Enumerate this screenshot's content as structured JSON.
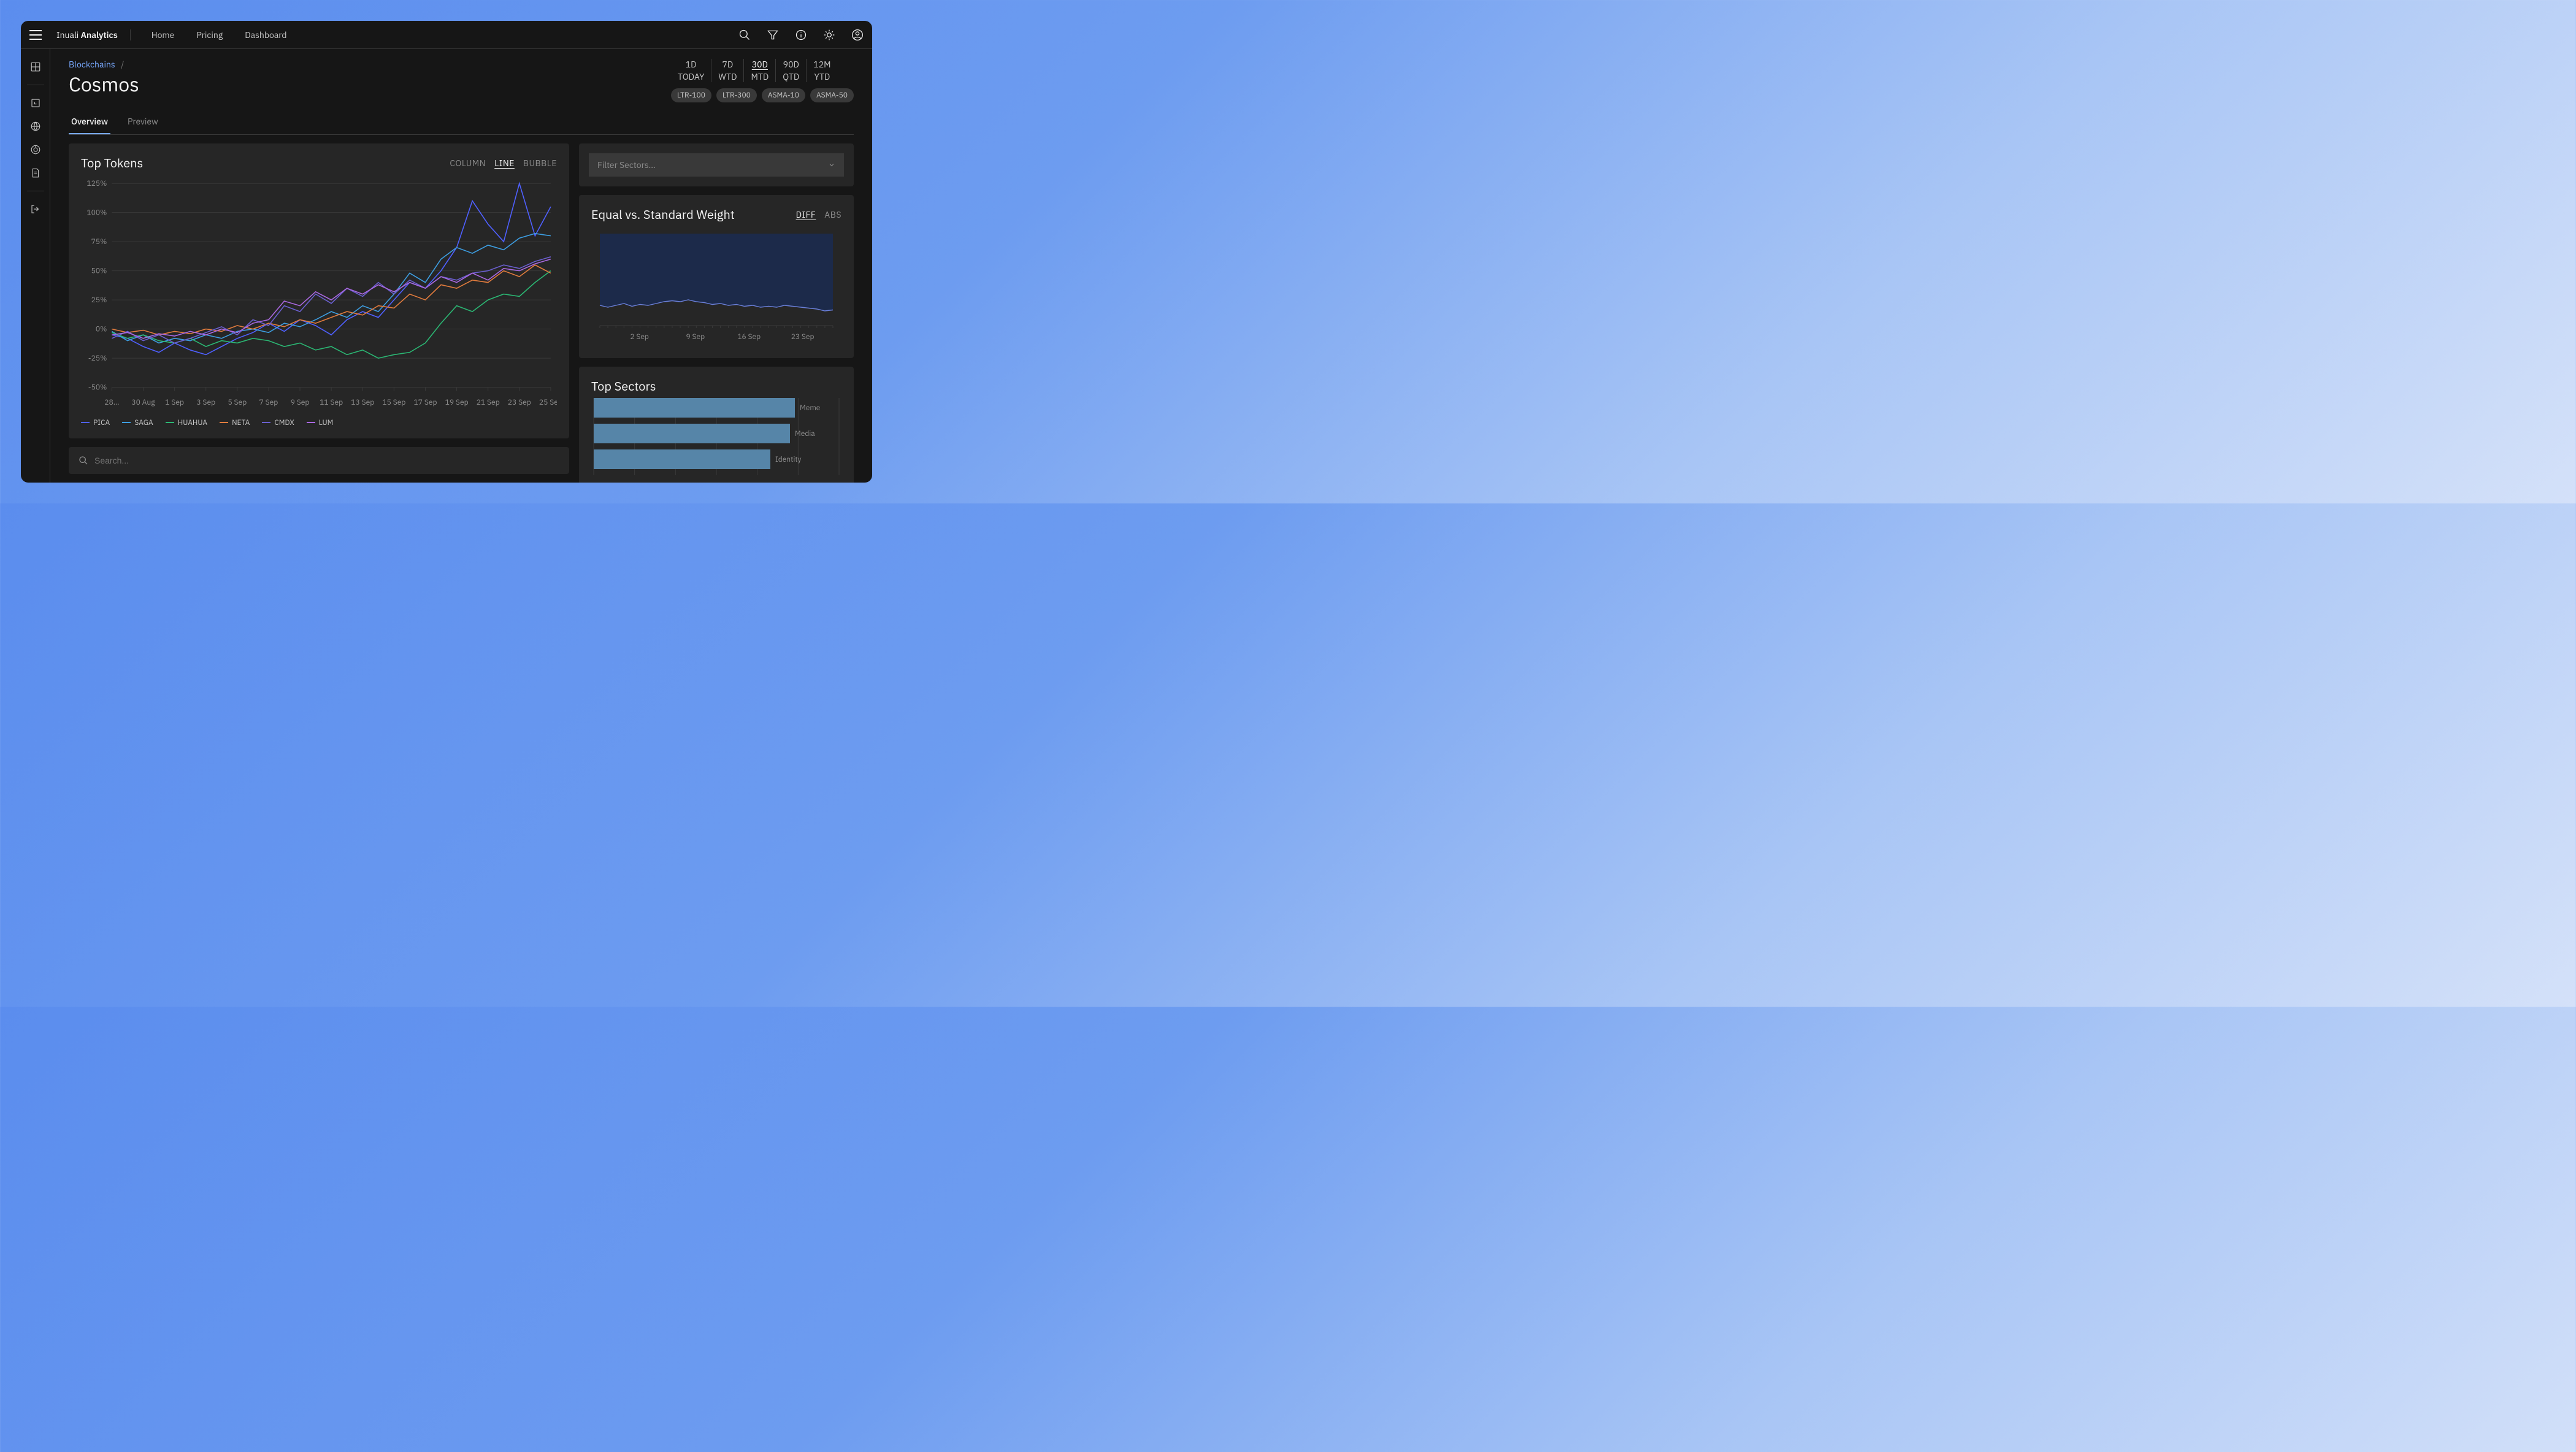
{
  "brand": {
    "prefix": "Inuali",
    "suffix": "Analytics"
  },
  "nav": [
    "Home",
    "Pricing",
    "Dashboard"
  ],
  "breadcrumb": {
    "link": "Blockchains",
    "sep": "/"
  },
  "page_title": "Cosmos",
  "time_ranges": [
    {
      "top": "1D",
      "bottom": "TODAY",
      "active": false
    },
    {
      "top": "7D",
      "bottom": "WTD",
      "active": false
    },
    {
      "top": "30D",
      "bottom": "MTD",
      "active": true
    },
    {
      "top": "90D",
      "bottom": "QTD",
      "active": false
    },
    {
      "top": "12M",
      "bottom": "YTD",
      "active": false
    }
  ],
  "chips": [
    "LTR-100",
    "LTR-300",
    "ASMA-10",
    "ASMA-50"
  ],
  "tabs": [
    {
      "label": "Overview",
      "active": true
    },
    {
      "label": "Preview",
      "active": false
    }
  ],
  "top_tokens": {
    "title": "Top Tokens",
    "chart_types": [
      {
        "label": "COLUMN",
        "active": false
      },
      {
        "label": "LINE",
        "active": true
      },
      {
        "label": "BUBBLE",
        "active": false
      }
    ],
    "y_ticks": [
      "125%",
      "100%",
      "75%",
      "50%",
      "25%",
      "0%",
      "-25%",
      "-50%"
    ],
    "y_values": [
      125,
      100,
      75,
      50,
      25,
      0,
      -25,
      -50
    ],
    "x_labels": [
      "28…",
      "30 Aug",
      "1 Sep",
      "3 Sep",
      "5 Sep",
      "7 Sep",
      "9 Sep",
      "11 Sep",
      "13 Sep",
      "15 Sep",
      "17 Sep",
      "19 Sep",
      "21 Sep",
      "23 Sep",
      "25 Sep"
    ],
    "series": [
      {
        "name": "PICA",
        "color": "#4f60ff",
        "data": [
          -5,
          -8,
          -15,
          -20,
          -12,
          -18,
          -22,
          -15,
          -8,
          -3,
          5,
          -2,
          8,
          3,
          -5,
          8,
          15,
          10,
          25,
          40,
          35,
          50,
          70,
          110,
          90,
          75,
          125,
          80,
          105
        ]
      },
      {
        "name": "SAGA",
        "color": "#3d9de0",
        "data": [
          -2,
          -10,
          -5,
          -12,
          -8,
          -10,
          -5,
          -8,
          -2,
          0,
          -3,
          5,
          2,
          8,
          15,
          10,
          20,
          15,
          30,
          48,
          40,
          60,
          70,
          65,
          72,
          68,
          78,
          82,
          80
        ]
      },
      {
        "name": "HUAHUA",
        "color": "#2bb673",
        "data": [
          -3,
          -8,
          -5,
          -10,
          -12,
          -8,
          -15,
          -10,
          -12,
          -8,
          -10,
          -15,
          -12,
          -18,
          -15,
          -22,
          -18,
          -25,
          -22,
          -20,
          -12,
          5,
          20,
          15,
          25,
          30,
          28,
          40,
          50
        ]
      },
      {
        "name": "NETA",
        "color": "#e07b3d",
        "data": [
          0,
          -3,
          -1,
          -5,
          -2,
          -4,
          0,
          -2,
          3,
          0,
          5,
          2,
          8,
          5,
          10,
          15,
          12,
          20,
          18,
          30,
          25,
          38,
          35,
          42,
          40,
          50,
          45,
          55,
          48
        ]
      },
      {
        "name": "CMDX",
        "color": "#6a5fce",
        "data": [
          -8,
          -2,
          -10,
          -5,
          -12,
          -8,
          -3,
          2,
          -5,
          8,
          3,
          20,
          15,
          30,
          22,
          35,
          28,
          40,
          30,
          42,
          35,
          45,
          42,
          48,
          50,
          55,
          52,
          58,
          62
        ]
      },
      {
        "name": "LUM",
        "color": "#a968e0",
        "data": [
          -5,
          -3,
          -8,
          -4,
          -6,
          -2,
          -5,
          0,
          -3,
          5,
          8,
          24,
          20,
          32,
          25,
          35,
          30,
          38,
          32,
          40,
          35,
          45,
          40,
          48,
          42,
          52,
          50,
          56,
          60
        ]
      }
    ]
  },
  "search_placeholder": "Search...",
  "filter_placeholder": "Filter Sectors...",
  "weight_panel": {
    "title": "Equal vs. Standard Weight",
    "toggle": [
      {
        "label": "DIFF",
        "active": true
      },
      {
        "label": "ABS",
        "active": false
      }
    ],
    "x_labels": [
      "2 Sep",
      "9 Sep",
      "16 Sep",
      "23 Sep"
    ],
    "data": [
      22,
      20,
      22,
      24,
      21,
      23,
      22,
      24,
      26,
      27,
      26,
      28,
      26,
      25,
      23,
      24,
      22,
      23,
      21,
      22,
      20,
      21,
      20,
      22,
      21,
      20,
      19,
      18,
      16,
      17
    ],
    "area_color": "#1c2a4a",
    "line_color": "#6a7fd8"
  },
  "sectors_panel": {
    "title": "Top Sectors",
    "bars": [
      {
        "label": "Meme",
        "value": 82,
        "color": "#5685a8"
      },
      {
        "label": "Media",
        "value": 80,
        "color": "#5685a8"
      },
      {
        "label": "Identity",
        "value": 72,
        "color": "#5685a8"
      }
    ],
    "grid_count": 6
  }
}
